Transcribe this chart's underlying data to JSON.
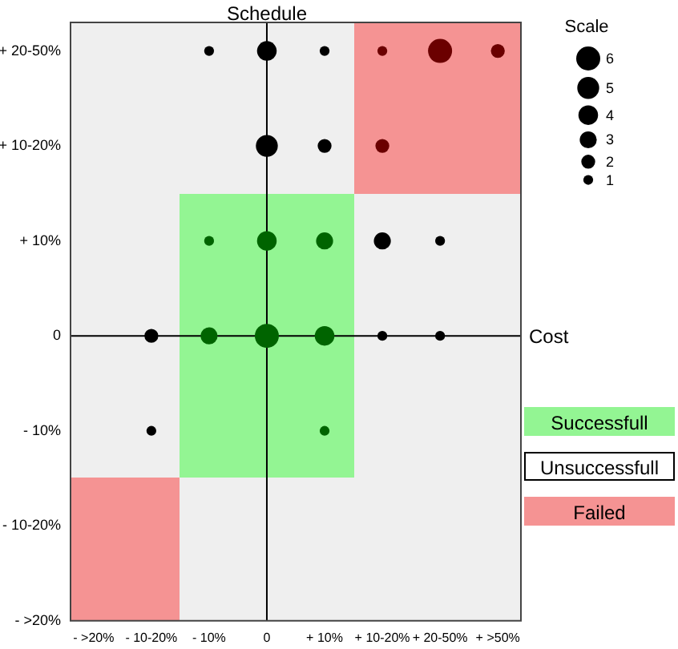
{
  "chart_data": {
    "type": "bubble",
    "legend_title": "Scale",
    "size_legend": [
      6,
      5,
      4,
      3,
      2,
      1
    ],
    "xlim": [
      -34,
      44
    ],
    "ylim": [
      -30,
      33
    ],
    "xticks": [
      {
        "value": -30,
        "label": "- >20%"
      },
      {
        "value": -20,
        "label": "- 10-20%"
      },
      {
        "value": -10,
        "label": "- 10%"
      },
      0,
      {
        "value": 10,
        "label": "+ 10%"
      },
      {
        "value": 20,
        "label": "+ 10-20%"
      },
      {
        "value": 30,
        "label": "+ 20-50%"
      },
      {
        "value": 40,
        "label": "+ >50%"
      }
    ],
    "yticks": [
      {
        "value": 30,
        "label": "+ 20-50%"
      },
      {
        "value": 20,
        "label": "+ 10-20%"
      },
      {
        "value": 10,
        "label": "+ 10%"
      },
      0,
      {
        "value": -10,
        "label": "- 10%"
      },
      {
        "value": -20,
        "label": "- 10-20%"
      },
      {
        "value": -30,
        "label": "- >20%"
      }
    ],
    "grid": false,
    "ref_lines": [
      {
        "axis": "x",
        "value": 0,
        "label": "Schedule",
        "color": "#000000"
      },
      {
        "axis": "y",
        "value": 0,
        "label": "Cost",
        "color": "#000000"
      }
    ],
    "annotations": [
      "Successfull",
      "Unsuccessfull",
      "Failed"
    ],
    "series": [
      {
        "color": "#000000",
        "x": [
          -10,
          0,
          10,
          0,
          10,
          20,
          30,
          -20,
          20,
          30,
          -20
        ],
        "values": [
          30,
          30,
          30,
          20,
          20,
          10,
          10,
          0,
          0,
          0,
          -10
        ],
        "sizes": [
          1,
          4,
          1,
          5,
          2,
          3,
          1,
          2,
          1,
          1,
          1
        ]
      },
      {
        "color": "#006400",
        "x": [
          -10,
          0,
          10,
          -10,
          0,
          10,
          10
        ],
        "values": [
          10,
          10,
          10,
          0,
          0,
          0,
          -10
        ],
        "sizes": [
          1,
          4,
          3,
          3,
          6,
          4,
          1
        ]
      },
      {
        "color": "#6b0000",
        "x": [
          20,
          30,
          40,
          20
        ],
        "values": [
          30,
          30,
          30,
          20
        ],
        "sizes": [
          1,
          6,
          2,
          2
        ]
      }
    ]
  }
}
